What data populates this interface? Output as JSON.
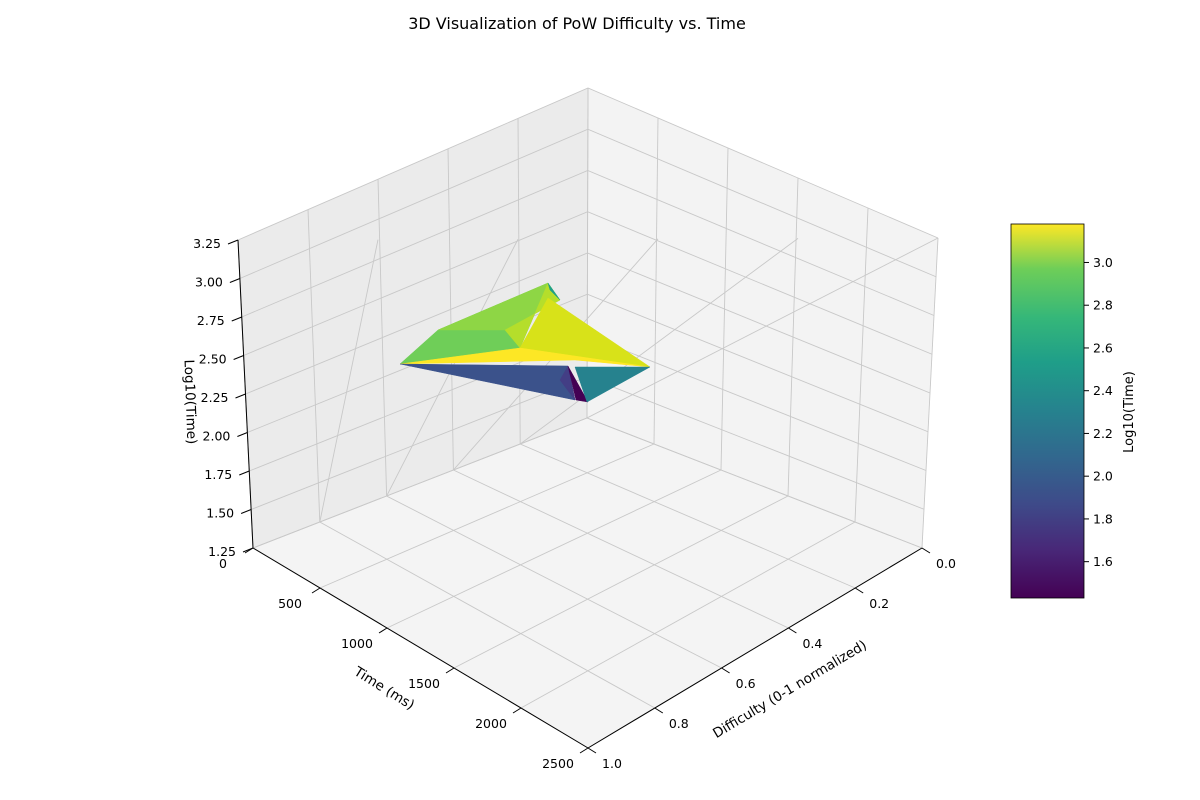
{
  "chart_data": {
    "type": "surface3d",
    "title": "3D Visualization of PoW Difficulty vs. Time",
    "xlabel": "Difficulty (0-1 normalized)",
    "ylabel": "Time (ms)",
    "zlabel": "Log10(Time)",
    "xlim": [
      0.0,
      1.0
    ],
    "ylim": [
      0,
      2500
    ],
    "zlim": [
      1.25,
      3.25
    ],
    "x_ticks": [
      "0.0",
      "0.2",
      "0.4",
      "0.6",
      "0.8",
      "1.0"
    ],
    "y_ticks": [
      "0",
      "500",
      "1000",
      "1500",
      "2000",
      "2500"
    ],
    "z_ticks": [
      "1.25",
      "1.50",
      "1.75",
      "2.00",
      "2.25",
      "2.50",
      "2.75",
      "3.00",
      "3.25"
    ],
    "grid": true,
    "colormap": "viridis",
    "colorbar": {
      "label": "Log10(Time)",
      "range": [
        1.43,
        3.18
      ],
      "ticks": [
        "1.6",
        "1.8",
        "2.0",
        "2.2",
        "2.4",
        "2.6",
        "2.8",
        "3.0"
      ]
    },
    "surface_faces": [
      {
        "z": 2.75,
        "color": "#6fce58"
      },
      {
        "z": 2.85,
        "color": "#8ed645"
      },
      {
        "z": 2.95,
        "color": "#b5de2b"
      },
      {
        "z": 3.05,
        "color": "#d8e219"
      },
      {
        "z": 3.15,
        "color": "#fde725"
      },
      {
        "z": 2.45,
        "color": "#1fa088"
      },
      {
        "z": 1.85,
        "color": "#3b528b"
      },
      {
        "z": 1.75,
        "color": "#433e85"
      },
      {
        "z": 1.45,
        "color": "#440154"
      },
      {
        "z": 2.3,
        "color": "#26828e"
      }
    ]
  }
}
